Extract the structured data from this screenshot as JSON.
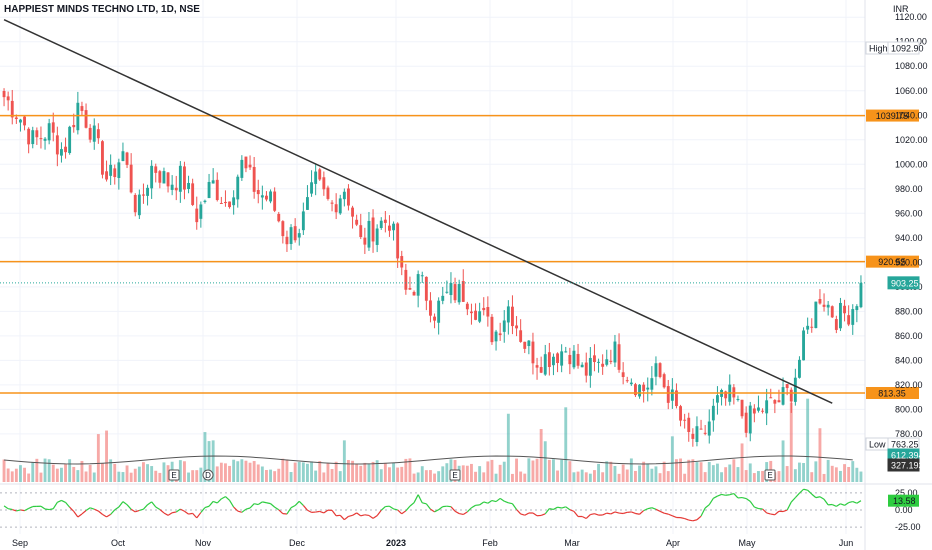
{
  "header": {
    "title": "HAPPIEST MINDS TECHNO LTD, 1D, NSE",
    "currency": "INR"
  },
  "colors": {
    "up": "#26a69a",
    "down": "#ef5350",
    "level": "#f7931a",
    "trend": "#333333",
    "rsi_up": "#2ecc40",
    "rsi_down": "#e53935",
    "vol_ma": "#555555"
  },
  "badges": {
    "high_label": "High",
    "high_value": "1092.90",
    "low_label": "Low",
    "low_value": "763.25",
    "last_price": "903.25",
    "vol_value": "612.394K",
    "vol_ma_value": "327.193K",
    "rsi_value": "13.58"
  },
  "chart_data": {
    "type": "candlestick",
    "symbol": "HAPPIEST MINDS TECHNO LTD",
    "interval": "1D",
    "exchange": "NSE",
    "x_labels": [
      "Sep",
      "Oct",
      "Nov",
      "Dec",
      "2023",
      "Feb",
      "Mar",
      "Apr",
      "May",
      "Jun"
    ],
    "price_ticks": [
      "1120.00",
      "1100.00",
      "1080.00",
      "1060.00",
      "1040.00",
      "1020.00",
      "1000.00",
      "980.00",
      "960.00",
      "940.00",
      "920.00",
      "900.00",
      "880.00",
      "860.00",
      "840.00",
      "820.00",
      "800.00",
      "780.00"
    ],
    "price_range": [
      775,
      1121
    ],
    "levels": [
      {
        "value": 1039.75,
        "label": "1039.75"
      },
      {
        "value": 920.55,
        "label": "920.55"
      },
      {
        "value": 813.35,
        "label": "813.35"
      }
    ],
    "last_price": 903.25,
    "high": 1092.9,
    "low": 763.25,
    "trendline": {
      "from": {
        "bar": 0,
        "price": 1118
      },
      "to": {
        "bar": 202,
        "price": 805
      }
    },
    "close_path": [
      1055,
      1040,
      1018,
      1028,
      1010,
      1050,
      1025,
      985,
      1010,
      960,
      1000,
      985,
      990,
      958,
      985,
      968,
      1000,
      978,
      970,
      940,
      950,
      985,
      965,
      982,
      935,
      950,
      955,
      895,
      905,
      880,
      895,
      895,
      880,
      860,
      885,
      855,
      840,
      845,
      850,
      830,
      835,
      850,
      830,
      815,
      830,
      808,
      778,
      775,
      805,
      810,
      790,
      800,
      805,
      815,
      860,
      895,
      875,
      880,
      905
    ],
    "markers": [
      "E",
      "D",
      "E",
      "E"
    ],
    "rsi_ticks": [
      "25.00",
      "0.00",
      "-25.00"
    ],
    "rsi_path": [
      5,
      -3,
      8,
      -2,
      15,
      -8,
      5,
      -10,
      10,
      -5,
      12,
      -8,
      2,
      -10,
      8,
      18,
      -5,
      10,
      12,
      -6,
      10,
      -4,
      0,
      -12,
      -6,
      -10,
      6,
      -6,
      20,
      -2,
      8,
      -8,
      10,
      12,
      16,
      -4,
      -8,
      0,
      5,
      -12,
      -8,
      -3,
      -6,
      -4,
      2,
      -8,
      -14,
      -12,
      16,
      25,
      18,
      4,
      -8,
      2,
      30,
      20,
      6,
      10,
      13.58
    ]
  }
}
